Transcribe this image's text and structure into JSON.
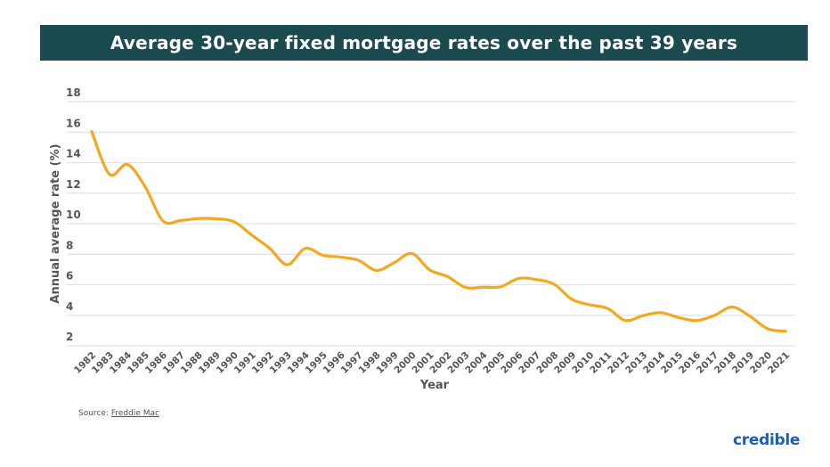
{
  "chart_data": {
    "type": "line",
    "title": "Average 30-year fixed mortgage rates over the past 39 years",
    "xlabel": "Year",
    "ylabel": "Annual average rate (%)",
    "ylim": [
      2,
      18
    ],
    "yticks": [
      "2",
      "4",
      "6",
      "8",
      "10",
      "12",
      "14",
      "16",
      "18"
    ],
    "grid": true,
    "x": [
      "1982",
      "1983",
      "1984",
      "1985",
      "1986",
      "1987",
      "1988",
      "1989",
      "1990",
      "1991",
      "1992",
      "1993",
      "1994",
      "1995",
      "1996",
      "1997",
      "1998",
      "1999",
      "2000",
      "2001",
      "2002",
      "2003",
      "2004",
      "2005",
      "2006",
      "2007",
      "2008",
      "2009",
      "2010",
      "2011",
      "2012",
      "2013",
      "2014",
      "2015",
      "2016",
      "2017",
      "2018",
      "2019",
      "2020",
      "2021"
    ],
    "series": [
      {
        "color": "#f2a922",
        "values": [
          16.04,
          13.24,
          13.88,
          12.43,
          10.19,
          10.21,
          10.34,
          10.32,
          10.13,
          9.25,
          8.39,
          7.31,
          8.38,
          7.93,
          7.81,
          7.6,
          6.94,
          7.44,
          8.05,
          6.97,
          6.54,
          5.83,
          5.84,
          5.87,
          6.41,
          6.34,
          6.03,
          5.04,
          4.69,
          4.45,
          3.66,
          3.98,
          4.17,
          3.85,
          3.65,
          3.99,
          4.54,
          3.94,
          3.11,
          2.96
        ]
      }
    ]
  },
  "source": {
    "label": "Source:",
    "link": "Freddie Mac"
  },
  "brand": "credible"
}
